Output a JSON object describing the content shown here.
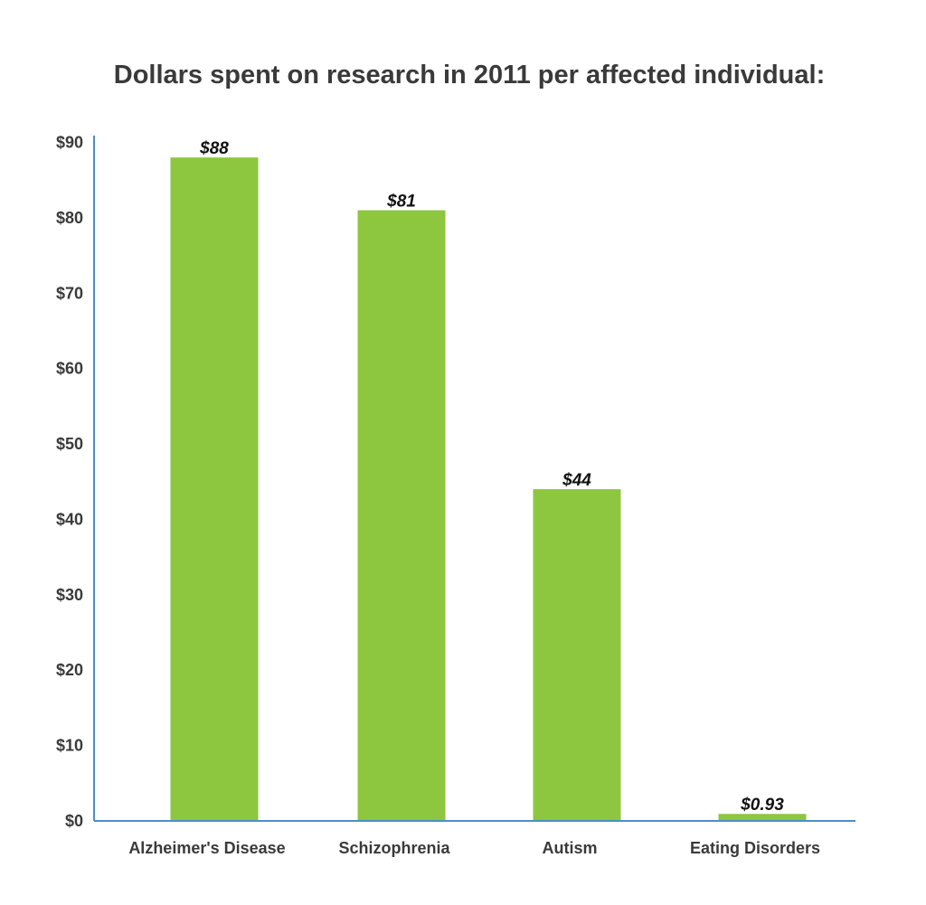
{
  "chart_data": {
    "type": "bar",
    "title": "Dollars spent on research in 2011 per affected individual:",
    "xlabel": "",
    "ylabel": "",
    "categories": [
      "Alzheimer's Disease",
      "Schizophrenia",
      "Autism",
      "Eating Disorders"
    ],
    "values": [
      88,
      81,
      44,
      0.93
    ],
    "value_labels": [
      "$88",
      "$81",
      "$44",
      "$0.93"
    ],
    "ylim": [
      0,
      90
    ],
    "yticks": [
      0,
      10,
      20,
      30,
      40,
      50,
      60,
      70,
      80,
      90
    ],
    "ytick_labels": [
      "$0",
      "$10",
      "$20",
      "$30",
      "$40",
      "$50",
      "$60",
      "$70",
      "$80",
      "$90"
    ],
    "grid": false,
    "legend": "none",
    "colors": {
      "bar": "#8dc63f",
      "axis": "#4a90c8",
      "text": "#3a3a3a",
      "value_text": "#111111"
    }
  }
}
